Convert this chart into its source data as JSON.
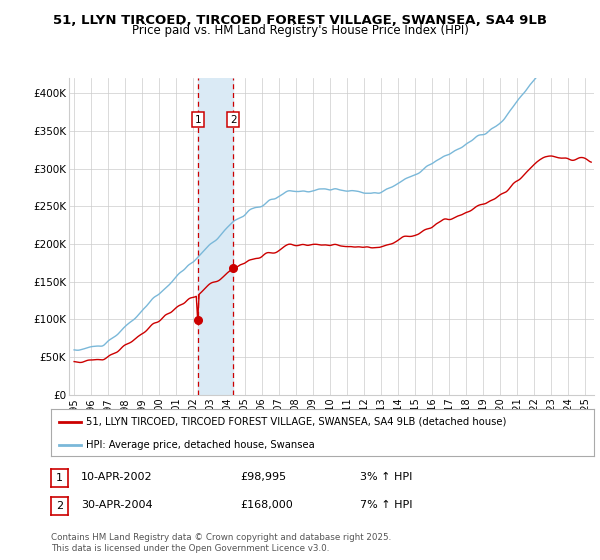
{
  "title_line1": "51, LLYN TIRCOED, TIRCOED FOREST VILLAGE, SWANSEA, SA4 9LB",
  "title_line2": "Price paid vs. HM Land Registry's House Price Index (HPI)",
  "ylabel_ticks": [
    "£0",
    "£50K",
    "£100K",
    "£150K",
    "£200K",
    "£250K",
    "£300K",
    "£350K",
    "£400K"
  ],
  "ytick_values": [
    0,
    50000,
    100000,
    150000,
    200000,
    250000,
    300000,
    350000,
    400000
  ],
  "ylim": [
    0,
    420000
  ],
  "xlim_start": 1994.7,
  "xlim_end": 2025.5,
  "xtick_years": [
    1995,
    1996,
    1997,
    1998,
    1999,
    2000,
    2001,
    2002,
    2003,
    2004,
    2005,
    2006,
    2007,
    2008,
    2009,
    2010,
    2011,
    2012,
    2013,
    2014,
    2015,
    2016,
    2017,
    2018,
    2019,
    2020,
    2021,
    2022,
    2023,
    2024,
    2025
  ],
  "sale1_year": 2002.28,
  "sale1_price": 98995,
  "sale1_label": "1",
  "sale2_year": 2004.33,
  "sale2_price": 168000,
  "sale2_label": "2",
  "hpi_line_color": "#7ab8d9",
  "price_line_color": "#cc0000",
  "sale_dot_color": "#cc0000",
  "vline_color": "#cc0000",
  "vspan_color": "#daeaf5",
  "grid_color": "#cccccc",
  "bg_color": "#ffffff",
  "legend_label_red": "51, LLYN TIRCOED, TIRCOED FOREST VILLAGE, SWANSEA, SA4 9LB (detached house)",
  "legend_label_blue": "HPI: Average price, detached house, Swansea",
  "table_row1": [
    "1",
    "10-APR-2002",
    "£98,995",
    "3% ↑ HPI"
  ],
  "table_row2": [
    "2",
    "30-APR-2004",
    "£168,000",
    "7% ↑ HPI"
  ],
  "footnote": "Contains HM Land Registry data © Crown copyright and database right 2025.\nThis data is licensed under the Open Government Licence v3.0."
}
